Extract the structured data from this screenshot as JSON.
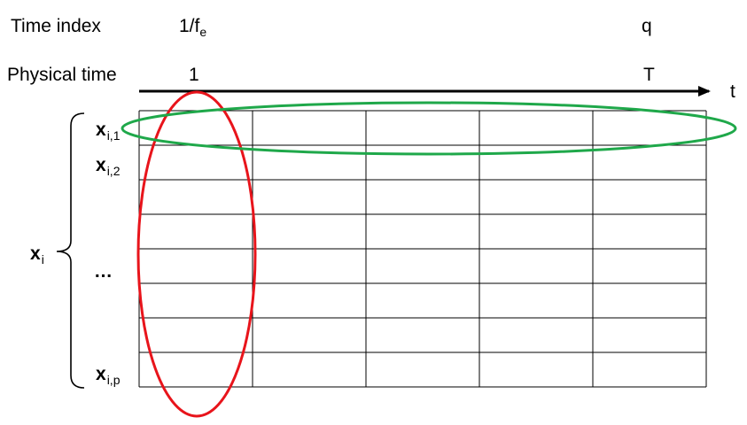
{
  "header": {
    "time_index_label": "Time index",
    "physical_time_label": "Physical time",
    "time_index_start": {
      "base": "1/f",
      "sub": "e"
    },
    "time_index_end": "q",
    "physical_time_start": "1",
    "physical_time_end": "T",
    "axis_label": "t"
  },
  "rows": {
    "group": {
      "base": "x",
      "sub": "i"
    },
    "first": {
      "base": "x",
      "sub": "i,1"
    },
    "second": {
      "base": "x",
      "sub": "i,2"
    },
    "ellipsis": "…",
    "last": {
      "base": "x",
      "sub": "i,p"
    }
  },
  "grid": {
    "columns": 5,
    "rows": 8
  },
  "colors": {
    "column_highlight": "#e8141b",
    "row_highlight": "#1fa84a",
    "lines": "#000000"
  }
}
